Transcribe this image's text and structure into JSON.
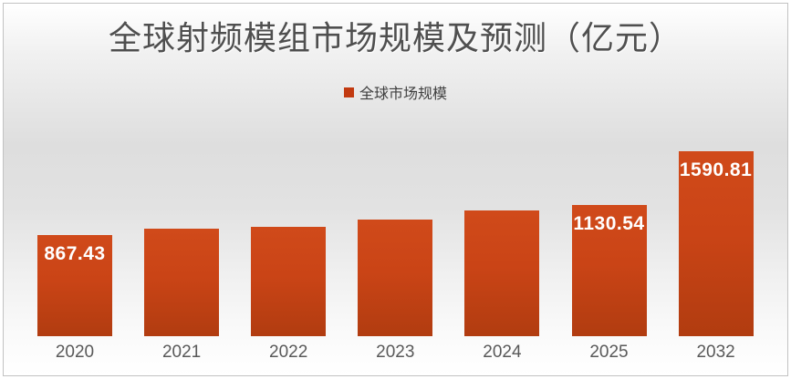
{
  "chart_data": {
    "type": "bar",
    "title": "全球射频模组市场规模及预测（亿元）",
    "legend": {
      "label": "全球市场规模",
      "position": "top"
    },
    "categories": [
      "2020",
      "2021",
      "2022",
      "2023",
      "2024",
      "2025",
      "2032"
    ],
    "series": [
      {
        "name": "全球市场规模",
        "values": [
          867.43,
          925,
          940,
          1000,
          1078,
          1130.54,
          1590.81
        ]
      }
    ],
    "visible_data_labels": {
      "2020": "867.43",
      "2025": "1130.54",
      "2032": "1590.81"
    },
    "estimated_categories": [
      "2021",
      "2022",
      "2023",
      "2024"
    ],
    "xlabel": "",
    "ylabel": "",
    "ylim": [
      0,
      1700
    ],
    "grid": false,
    "colors": {
      "bar_top": "#d04a1a",
      "bar_bottom": "#b13c10",
      "legend_marker": "#c23a10",
      "data_label": "#ffffff",
      "axis_label": "#595959",
      "title": "#4f4f4f",
      "legend_text": "#3f3f3f",
      "frame_border": "#c2c2c2"
    }
  }
}
